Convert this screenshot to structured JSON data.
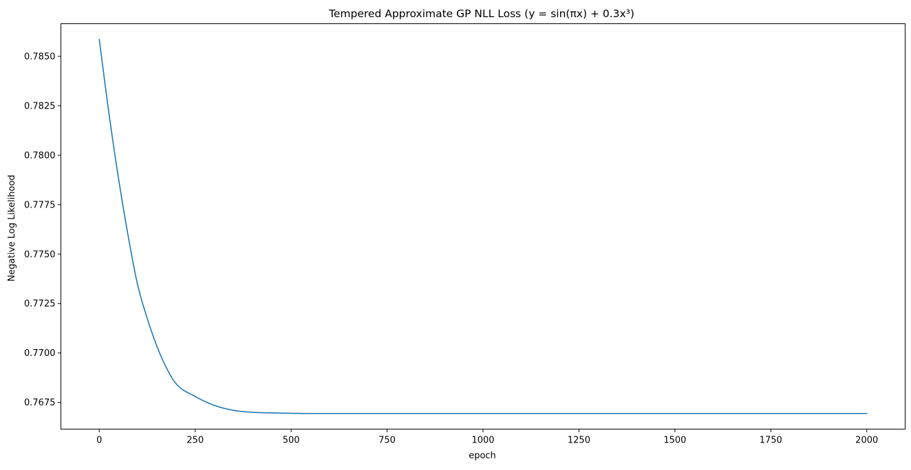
{
  "chart_data": {
    "type": "line",
    "title": "Tempered Approximate GP NLL Loss (y = sin(πx) + 0.3x³)",
    "xlabel": "epoch",
    "ylabel": "Negative Log Likelihood",
    "xlim": [
      -100,
      2100
    ],
    "ylim": [
      0.76615,
      0.78665
    ],
    "xticks": [
      0,
      250,
      500,
      750,
      1000,
      1250,
      1500,
      1750,
      2000
    ],
    "xtick_labels": [
      "0",
      "250",
      "500",
      "750",
      "1000",
      "1250",
      "1500",
      "1750",
      "2000"
    ],
    "yticks": [
      0.7675,
      0.77,
      0.7725,
      0.775,
      0.7775,
      0.78,
      0.7825,
      0.785
    ],
    "ytick_labels": [
      "0.7675",
      "0.7700",
      "0.7725",
      "0.7750",
      "0.7775",
      "0.7800",
      "0.7825",
      "0.7850"
    ],
    "grid": false,
    "legend": "none",
    "series": [
      {
        "color": "#1f77b4",
        "x": [
          0,
          25,
          50,
          75,
          100,
          125,
          150,
          175,
          200,
          250,
          300,
          350,
          400,
          450,
          500,
          550,
          600,
          700,
          800,
          1000,
          1250,
          1500,
          1750,
          2000
        ],
        "y": [
          0.78585,
          0.78215,
          0.77885,
          0.77595,
          0.77345,
          0.77175,
          0.77035,
          0.76925,
          0.76845,
          0.7678,
          0.76735,
          0.7671,
          0.767,
          0.76697,
          0.76695,
          0.76694,
          0.76694,
          0.76694,
          0.76694,
          0.76694,
          0.76694,
          0.76694,
          0.76694,
          0.76694
        ]
      }
    ]
  }
}
